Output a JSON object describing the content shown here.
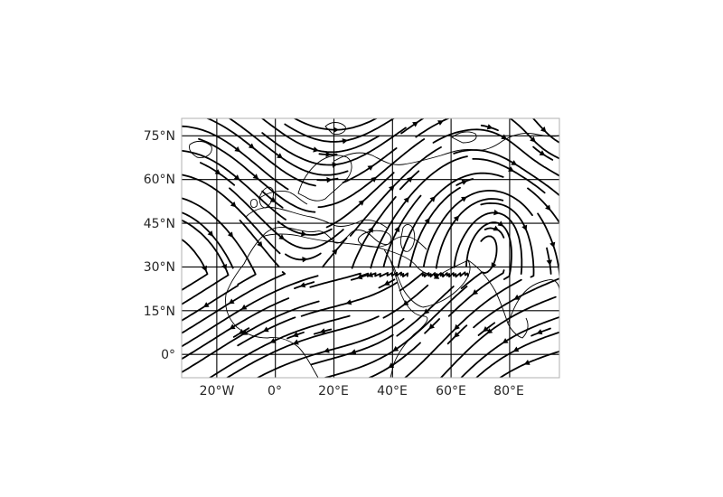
{
  "map": {
    "extent": {
      "lon_min": -32,
      "lon_max": 97,
      "lat_min": -8,
      "lat_max": 81
    },
    "lon_ticks": [
      {
        "value": -20,
        "label": "20°W"
      },
      {
        "value": 0,
        "label": "0°"
      },
      {
        "value": 20,
        "label": "20°E"
      },
      {
        "value": 40,
        "label": "40°E"
      },
      {
        "value": 60,
        "label": "60°E"
      },
      {
        "value": 80,
        "label": "80°E"
      }
    ],
    "lat_ticks": [
      {
        "value": 75,
        "label": "75°N"
      },
      {
        "value": 60,
        "label": "60°N"
      },
      {
        "value": 45,
        "label": "45°N"
      },
      {
        "value": 30,
        "label": "30°N"
      },
      {
        "value": 15,
        "label": "15°N"
      },
      {
        "value": 0,
        "label": "0°"
      }
    ],
    "gridlines": true,
    "layer_type": "streamlines",
    "coastlines": true,
    "colors": {
      "lines": "#000000",
      "frame": "#b0b0b0",
      "labels": "#262626",
      "background": "#ffffff"
    }
  }
}
